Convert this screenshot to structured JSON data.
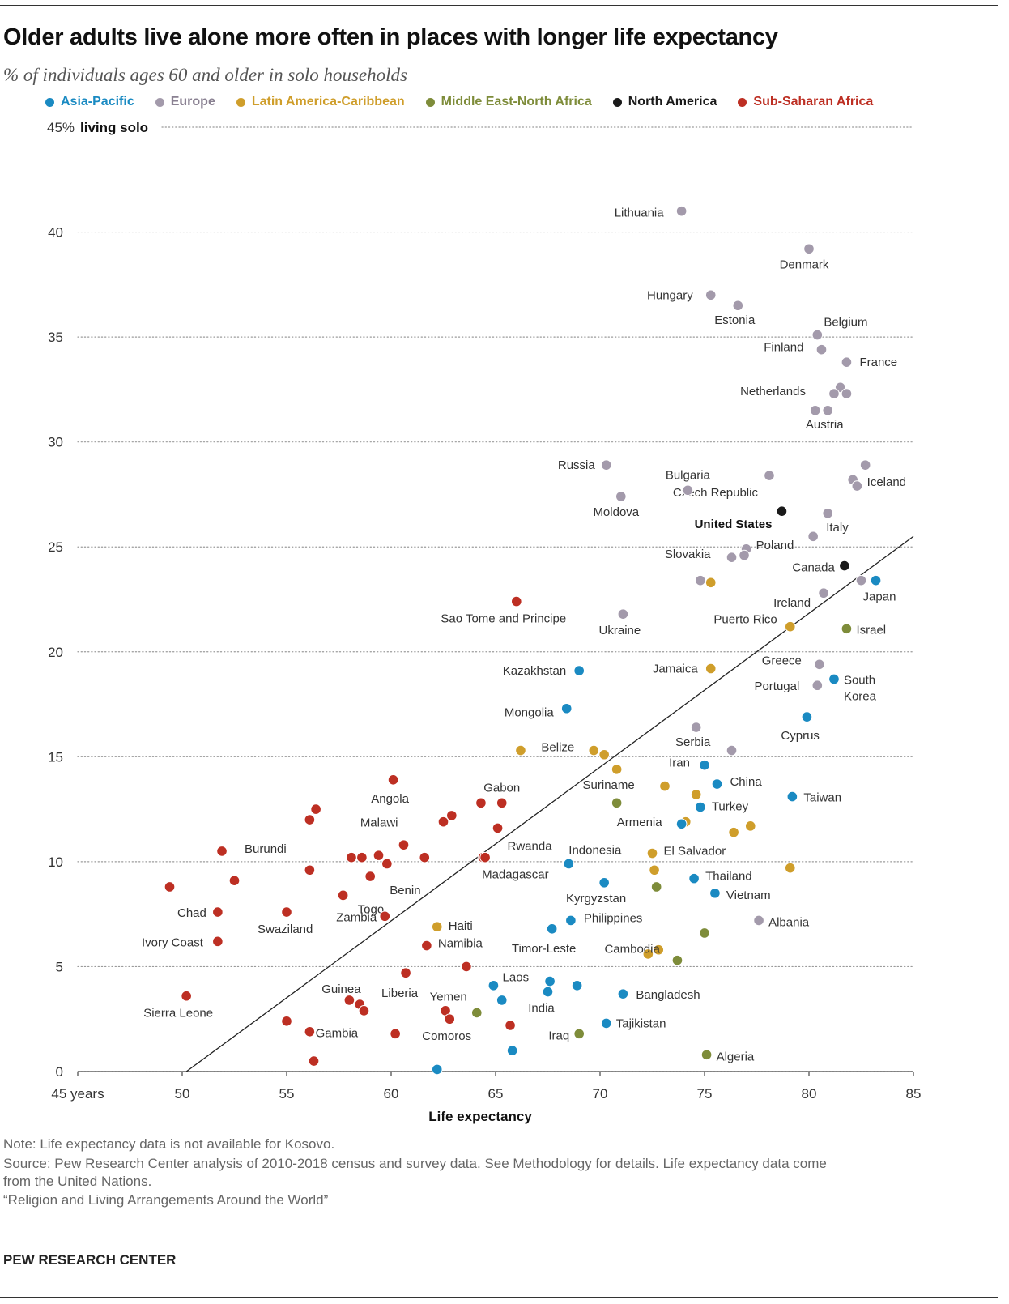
{
  "title": "Older adults live alone more often in places with longer life expectancy",
  "subtitle": "% of individuals ages 60 and older in solo households",
  "legend": [
    {
      "name": "Asia-Pacific",
      "color": "#1a8ac2"
    },
    {
      "name": "Europe",
      "color": "#a39aab"
    },
    {
      "name": "Latin America-Caribbean",
      "color": "#cf9e2b"
    },
    {
      "name": "Middle East-North Africa",
      "color": "#7e8c3a"
    },
    {
      "name": "North America",
      "color": "#1a1a1a"
    },
    {
      "name": "Sub-Saharan Africa",
      "color": "#bd2f23"
    }
  ],
  "footer": {
    "note": "Note: Life expectancy data is not available for Kosovo.",
    "source_line1": "Source: Pew Research Center analysis of 2010-2018 census and survey data. See Methodology for details. Life expectancy data come",
    "source_line2": "from the United Nations.",
    "report": "“Religion and Living Arrangements Around the World”",
    "brand": "PEW RESEARCH CENTER"
  },
  "chart_data": {
    "type": "scatter",
    "title": "Older adults live alone more often in places with longer life expectancy",
    "subtitle": "% of individuals ages 60 and older in solo households",
    "xlabel": "Life expectancy",
    "ylabel": "% living solo",
    "xlim": [
      45,
      85
    ],
    "ylim": [
      0,
      45
    ],
    "x_ticks": [
      {
        "value": 45,
        "label": "45 years"
      },
      {
        "value": 50,
        "label": "50"
      },
      {
        "value": 55,
        "label": "55"
      },
      {
        "value": 60,
        "label": "60"
      },
      {
        "value": 65,
        "label": "65"
      },
      {
        "value": 70,
        "label": "70"
      },
      {
        "value": 75,
        "label": "75"
      },
      {
        "value": 80,
        "label": "80"
      },
      {
        "value": 85,
        "label": "85"
      }
    ],
    "y_ticks": [
      {
        "value": 0,
        "label": "0"
      },
      {
        "value": 5,
        "label": "5"
      },
      {
        "value": 10,
        "label": "10"
      },
      {
        "value": 15,
        "label": "15"
      },
      {
        "value": 20,
        "label": "20"
      },
      {
        "value": 25,
        "label": "25"
      },
      {
        "value": 30,
        "label": "30"
      },
      {
        "value": 35,
        "label": "35"
      },
      {
        "value": 40,
        "label": "40"
      }
    ],
    "y_top_label": {
      "prefix": "45%",
      "suffix": "living solo"
    },
    "grid": true,
    "trend_line": [
      [
        50.2,
        0
      ],
      [
        85,
        25.5
      ]
    ],
    "points": [
      {
        "r": "Europe",
        "x": 73.9,
        "y": 41.0,
        "label": "Lithuania"
      },
      {
        "r": "Europe",
        "x": 80.0,
        "y": 39.2,
        "label": "Denmark"
      },
      {
        "r": "Europe",
        "x": 75.3,
        "y": 37.0,
        "label": "Hungary"
      },
      {
        "r": "Europe",
        "x": 76.6,
        "y": 36.5,
        "label": "Estonia"
      },
      {
        "r": "Europe",
        "x": 80.4,
        "y": 35.1,
        "label": "Belgium"
      },
      {
        "r": "Europe",
        "x": 80.6,
        "y": 34.4,
        "label": "Finland"
      },
      {
        "r": "Europe",
        "x": 81.8,
        "y": 33.8,
        "label": "France"
      },
      {
        "r": "Europe",
        "x": 81.5,
        "y": 32.6,
        "label": ""
      },
      {
        "r": "Europe",
        "x": 81.2,
        "y": 32.3,
        "label": "Netherlands"
      },
      {
        "r": "Europe",
        "x": 81.8,
        "y": 32.3,
        "label": ""
      },
      {
        "r": "Europe",
        "x": 80.3,
        "y": 31.5,
        "label": ""
      },
      {
        "r": "Europe",
        "x": 80.9,
        "y": 31.5,
        "label": "Austria"
      },
      {
        "r": "Europe",
        "x": 70.3,
        "y": 28.9,
        "label": "Russia"
      },
      {
        "r": "Europe",
        "x": 78.1,
        "y": 28.4,
        "label": "Czech Republic"
      },
      {
        "r": "Europe",
        "x": 82.7,
        "y": 28.9,
        "label": "Iceland"
      },
      {
        "r": "Europe",
        "x": 82.1,
        "y": 28.2,
        "label": ""
      },
      {
        "r": "Europe",
        "x": 82.3,
        "y": 27.9,
        "label": ""
      },
      {
        "r": "Europe",
        "x": 74.2,
        "y": 27.7,
        "label": "Bulgaria"
      },
      {
        "r": "Europe",
        "x": 71.0,
        "y": 27.4,
        "label": "Moldova"
      },
      {
        "r": "North America",
        "x": 78.7,
        "y": 26.7,
        "label": "United States"
      },
      {
        "r": "Europe",
        "x": 80.9,
        "y": 26.6,
        "label": "Italy"
      },
      {
        "r": "Europe",
        "x": 80.2,
        "y": 25.5,
        "label": ""
      },
      {
        "r": "Europe",
        "x": 77.0,
        "y": 24.9,
        "label": "Poland"
      },
      {
        "r": "Europe",
        "x": 76.9,
        "y": 24.6,
        "label": ""
      },
      {
        "r": "Europe",
        "x": 76.3,
        "y": 24.5,
        "label": "Slovakia"
      },
      {
        "r": "North America",
        "x": 81.7,
        "y": 24.1,
        "label": "Canada"
      },
      {
        "r": "Europe",
        "x": 74.8,
        "y": 23.4,
        "label": ""
      },
      {
        "r": "Latin America-Caribbean",
        "x": 75.3,
        "y": 23.3,
        "label": ""
      },
      {
        "r": "Europe",
        "x": 82.5,
        "y": 23.4,
        "label": ""
      },
      {
        "r": "Asia-Pacific",
        "x": 83.2,
        "y": 23.4,
        "label": "Japan"
      },
      {
        "r": "Europe",
        "x": 80.7,
        "y": 22.8,
        "label": "Ireland"
      },
      {
        "r": "Sub-Saharan Africa",
        "x": 66.0,
        "y": 22.4,
        "label": "Sao Tome and Principe"
      },
      {
        "r": "Europe",
        "x": 71.1,
        "y": 21.8,
        "label": "Ukraine"
      },
      {
        "r": "Latin America-Caribbean",
        "x": 79.1,
        "y": 21.2,
        "label": "Puerto Rico"
      },
      {
        "r": "Middle East-North Africa",
        "x": 81.8,
        "y": 21.1,
        "label": "Israel"
      },
      {
        "r": "Asia-Pacific",
        "x": 69.0,
        "y": 19.1,
        "label": "Kazakhstan"
      },
      {
        "r": "Latin America-Caribbean",
        "x": 75.3,
        "y": 19.2,
        "label": "Jamaica"
      },
      {
        "r": "Europe",
        "x": 80.5,
        "y": 19.4,
        "label": "Greece"
      },
      {
        "r": "Asia-Pacific",
        "x": 81.2,
        "y": 18.7,
        "label": "South Korea"
      },
      {
        "r": "Europe",
        "x": 80.4,
        "y": 18.4,
        "label": "Portugal"
      },
      {
        "r": "Asia-Pacific",
        "x": 68.4,
        "y": 17.3,
        "label": "Mongolia"
      },
      {
        "r": "Asia-Pacific",
        "x": 79.9,
        "y": 16.9,
        "label": "Cyprus"
      },
      {
        "r": "Europe",
        "x": 74.6,
        "y": 16.4,
        "label": "Serbia"
      },
      {
        "r": "Latin America-Caribbean",
        "x": 66.2,
        "y": 15.3,
        "label": ""
      },
      {
        "r": "Latin America-Caribbean",
        "x": 69.7,
        "y": 15.3,
        "label": "Belize"
      },
      {
        "r": "Latin America-Caribbean",
        "x": 70.2,
        "y": 15.1,
        "label": ""
      },
      {
        "r": "Europe",
        "x": 76.3,
        "y": 15.3,
        "label": ""
      },
      {
        "r": "Asia-Pacific",
        "x": 75.0,
        "y": 14.6,
        "label": "Iran"
      },
      {
        "r": "Latin America-Caribbean",
        "x": 70.8,
        "y": 14.4,
        "label": "Suriname"
      },
      {
        "r": "Asia-Pacific",
        "x": 75.6,
        "y": 13.7,
        "label": "China"
      },
      {
        "r": "Latin America-Caribbean",
        "x": 73.1,
        "y": 13.6,
        "label": ""
      },
      {
        "r": "Latin America-Caribbean",
        "x": 74.6,
        "y": 13.2,
        "label": ""
      },
      {
        "r": "Asia-Pacific",
        "x": 79.2,
        "y": 13.1,
        "label": "Taiwan"
      },
      {
        "r": "Middle East-North Africa",
        "x": 70.8,
        "y": 12.8,
        "label": ""
      },
      {
        "r": "Asia-Pacific",
        "x": 74.8,
        "y": 12.6,
        "label": "Turkey"
      },
      {
        "r": "Latin America-Caribbean",
        "x": 74.1,
        "y": 11.9,
        "label": ""
      },
      {
        "r": "Asia-Pacific",
        "x": 73.9,
        "y": 11.8,
        "label": "Armenia"
      },
      {
        "r": "Latin America-Caribbean",
        "x": 77.2,
        "y": 11.7,
        "label": ""
      },
      {
        "r": "Latin America-Caribbean",
        "x": 76.4,
        "y": 11.4,
        "label": ""
      },
      {
        "r": "Latin America-Caribbean",
        "x": 72.5,
        "y": 10.4,
        "label": "El Salvador"
      },
      {
        "r": "Asia-Pacific",
        "x": 68.5,
        "y": 9.9,
        "label": "Indonesia"
      },
      {
        "r": "Latin America-Caribbean",
        "x": 72.6,
        "y": 9.6,
        "label": ""
      },
      {
        "r": "Latin America-Caribbean",
        "x": 79.1,
        "y": 9.7,
        "label": ""
      },
      {
        "r": "Asia-Pacific",
        "x": 74.5,
        "y": 9.2,
        "label": "Thailand"
      },
      {
        "r": "Asia-Pacific",
        "x": 70.2,
        "y": 9.0,
        "label": "Kyrgyzstan"
      },
      {
        "r": "Middle East-North Africa",
        "x": 72.7,
        "y": 8.8,
        "label": ""
      },
      {
        "r": "Asia-Pacific",
        "x": 75.5,
        "y": 8.5,
        "label": "Vietnam"
      },
      {
        "r": "Europe",
        "x": 77.6,
        "y": 7.2,
        "label": "Albania"
      },
      {
        "r": "Asia-Pacific",
        "x": 68.6,
        "y": 7.2,
        "label": "Philippines"
      },
      {
        "r": "Asia-Pacific",
        "x": 67.7,
        "y": 6.8,
        "label": "Timor-Leste"
      },
      {
        "r": "Middle East-North Africa",
        "x": 75.0,
        "y": 6.6,
        "label": ""
      },
      {
        "r": "Latin America-Caribbean",
        "x": 72.8,
        "y": 5.8,
        "label": ""
      },
      {
        "r": "Latin America-Caribbean",
        "x": 72.3,
        "y": 5.6,
        "label": ""
      },
      {
        "r": "Middle East-North Africa",
        "x": 73.7,
        "y": 5.3,
        "label": "Cambodia"
      },
      {
        "r": "Asia-Pacific",
        "x": 67.6,
        "y": 4.3,
        "label": "Laos"
      },
      {
        "r": "Asia-Pacific",
        "x": 64.9,
        "y": 4.1,
        "label": ""
      },
      {
        "r": "Asia-Pacific",
        "x": 68.9,
        "y": 4.1,
        "label": ""
      },
      {
        "r": "Asia-Pacific",
        "x": 67.5,
        "y": 3.8,
        "label": "India"
      },
      {
        "r": "Asia-Pacific",
        "x": 65.3,
        "y": 3.4,
        "label": ""
      },
      {
        "r": "Asia-Pacific",
        "x": 71.1,
        "y": 3.7,
        "label": "Bangladesh"
      },
      {
        "r": "Middle East-North Africa",
        "x": 64.1,
        "y": 2.8,
        "label": "Yemen"
      },
      {
        "r": "Asia-Pacific",
        "x": 70.3,
        "y": 2.3,
        "label": "Tajikistan"
      },
      {
        "r": "Middle East-North Africa",
        "x": 69.0,
        "y": 1.8,
        "label": "Iraq"
      },
      {
        "r": "Asia-Pacific",
        "x": 65.8,
        "y": 1.0,
        "label": ""
      },
      {
        "r": "Middle East-North Africa",
        "x": 75.1,
        "y": 0.8,
        "label": "Algeria"
      },
      {
        "r": "Asia-Pacific",
        "x": 62.2,
        "y": 0.1,
        "label": ""
      },
      {
        "r": "Sub-Saharan Africa",
        "x": 60.1,
        "y": 13.9,
        "label": "Angola"
      },
      {
        "r": "Sub-Saharan Africa",
        "x": 64.3,
        "y": 12.8,
        "label": ""
      },
      {
        "r": "Sub-Saharan Africa",
        "x": 65.3,
        "y": 12.8,
        "label": "Gabon"
      },
      {
        "r": "Sub-Saharan Africa",
        "x": 56.4,
        "y": 12.5,
        "label": ""
      },
      {
        "r": "Sub-Saharan Africa",
        "x": 62.9,
        "y": 12.2,
        "label": ""
      },
      {
        "r": "Sub-Saharan Africa",
        "x": 56.1,
        "y": 12.0,
        "label": ""
      },
      {
        "r": "Sub-Saharan Africa",
        "x": 62.5,
        "y": 11.9,
        "label": "Malawi"
      },
      {
        "r": "Sub-Saharan Africa",
        "x": 65.1,
        "y": 11.6,
        "label": ""
      },
      {
        "r": "Sub-Saharan Africa",
        "x": 60.6,
        "y": 10.8,
        "label": ""
      },
      {
        "r": "Sub-Saharan Africa",
        "x": 51.9,
        "y": 10.5,
        "label": "Burundi"
      },
      {
        "r": "Sub-Saharan Africa",
        "x": 58.1,
        "y": 10.2,
        "label": ""
      },
      {
        "r": "Sub-Saharan Africa",
        "x": 58.6,
        "y": 10.2,
        "label": ""
      },
      {
        "r": "Sub-Saharan Africa",
        "x": 59.4,
        "y": 10.3,
        "label": ""
      },
      {
        "r": "Sub-Saharan Africa",
        "x": 61.6,
        "y": 10.2,
        "label": ""
      },
      {
        "r": "Sub-Saharan Africa",
        "x": 64.4,
        "y": 10.2,
        "label": "Rwanda"
      },
      {
        "r": "Sub-Saharan Africa",
        "x": 59.8,
        "y": 9.9,
        "label": ""
      },
      {
        "r": "Sub-Saharan Africa",
        "x": 56.1,
        "y": 9.6,
        "label": ""
      },
      {
        "r": "Sub-Saharan Africa",
        "x": 59.0,
        "y": 9.3,
        "label": "Benin"
      },
      {
        "r": "Sub-Saharan Africa",
        "x": 52.5,
        "y": 9.1,
        "label": ""
      },
      {
        "r": "Sub-Saharan Africa",
        "x": 49.4,
        "y": 8.8,
        "label": ""
      },
      {
        "r": "Sub-Saharan Africa",
        "x": 57.7,
        "y": 8.4,
        "label": "Togo"
      },
      {
        "r": "Sub-Saharan Africa",
        "x": 51.7,
        "y": 7.6,
        "label": "Chad"
      },
      {
        "r": "Sub-Saharan Africa",
        "x": 55.0,
        "y": 7.6,
        "label": "Swaziland"
      },
      {
        "r": "Sub-Saharan Africa",
        "x": 59.7,
        "y": 7.4,
        "label": "Zambia"
      },
      {
        "r": "Latin America-Caribbean",
        "x": 62.2,
        "y": 6.9,
        "label": "Haiti"
      },
      {
        "r": "Sub-Saharan Africa",
        "x": 51.7,
        "y": 6.2,
        "label": "Ivory Coast"
      },
      {
        "r": "Sub-Saharan Africa",
        "x": 61.7,
        "y": 6.0,
        "label": "Namibia"
      },
      {
        "r": "Sub-Saharan Africa",
        "x": 63.6,
        "y": 5.0,
        "label": ""
      },
      {
        "r": "Sub-Saharan Africa",
        "x": 60.7,
        "y": 4.7,
        "label": "Liberia"
      },
      {
        "r": "Sub-Saharan Africa",
        "x": 50.2,
        "y": 3.6,
        "label": "Sierra Leone"
      },
      {
        "r": "Sub-Saharan Africa",
        "x": 58.0,
        "y": 3.4,
        "label": "Guinea"
      },
      {
        "r": "Sub-Saharan Africa",
        "x": 58.5,
        "y": 3.2,
        "label": ""
      },
      {
        "r": "Sub-Saharan Africa",
        "x": 58.7,
        "y": 2.9,
        "label": ""
      },
      {
        "r": "Sub-Saharan Africa",
        "x": 62.6,
        "y": 2.9,
        "label": ""
      },
      {
        "r": "Sub-Saharan Africa",
        "x": 62.8,
        "y": 2.5,
        "label": "Comoros"
      },
      {
        "r": "Sub-Saharan Africa",
        "x": 55.0,
        "y": 2.4,
        "label": ""
      },
      {
        "r": "Sub-Saharan Africa",
        "x": 65.7,
        "y": 2.2,
        "label": ""
      },
      {
        "r": "Sub-Saharan Africa",
        "x": 56.1,
        "y": 1.9,
        "label": ""
      },
      {
        "r": "Sub-Saharan Africa",
        "x": 60.2,
        "y": 1.8,
        "label": "Gambia"
      },
      {
        "r": "Sub-Saharan Africa",
        "x": 56.3,
        "y": 0.5,
        "label": ""
      },
      {
        "r": "Sub-Saharan Africa",
        "x": 64.5,
        "y": 10.2,
        "label": "Madagascar"
      }
    ]
  }
}
